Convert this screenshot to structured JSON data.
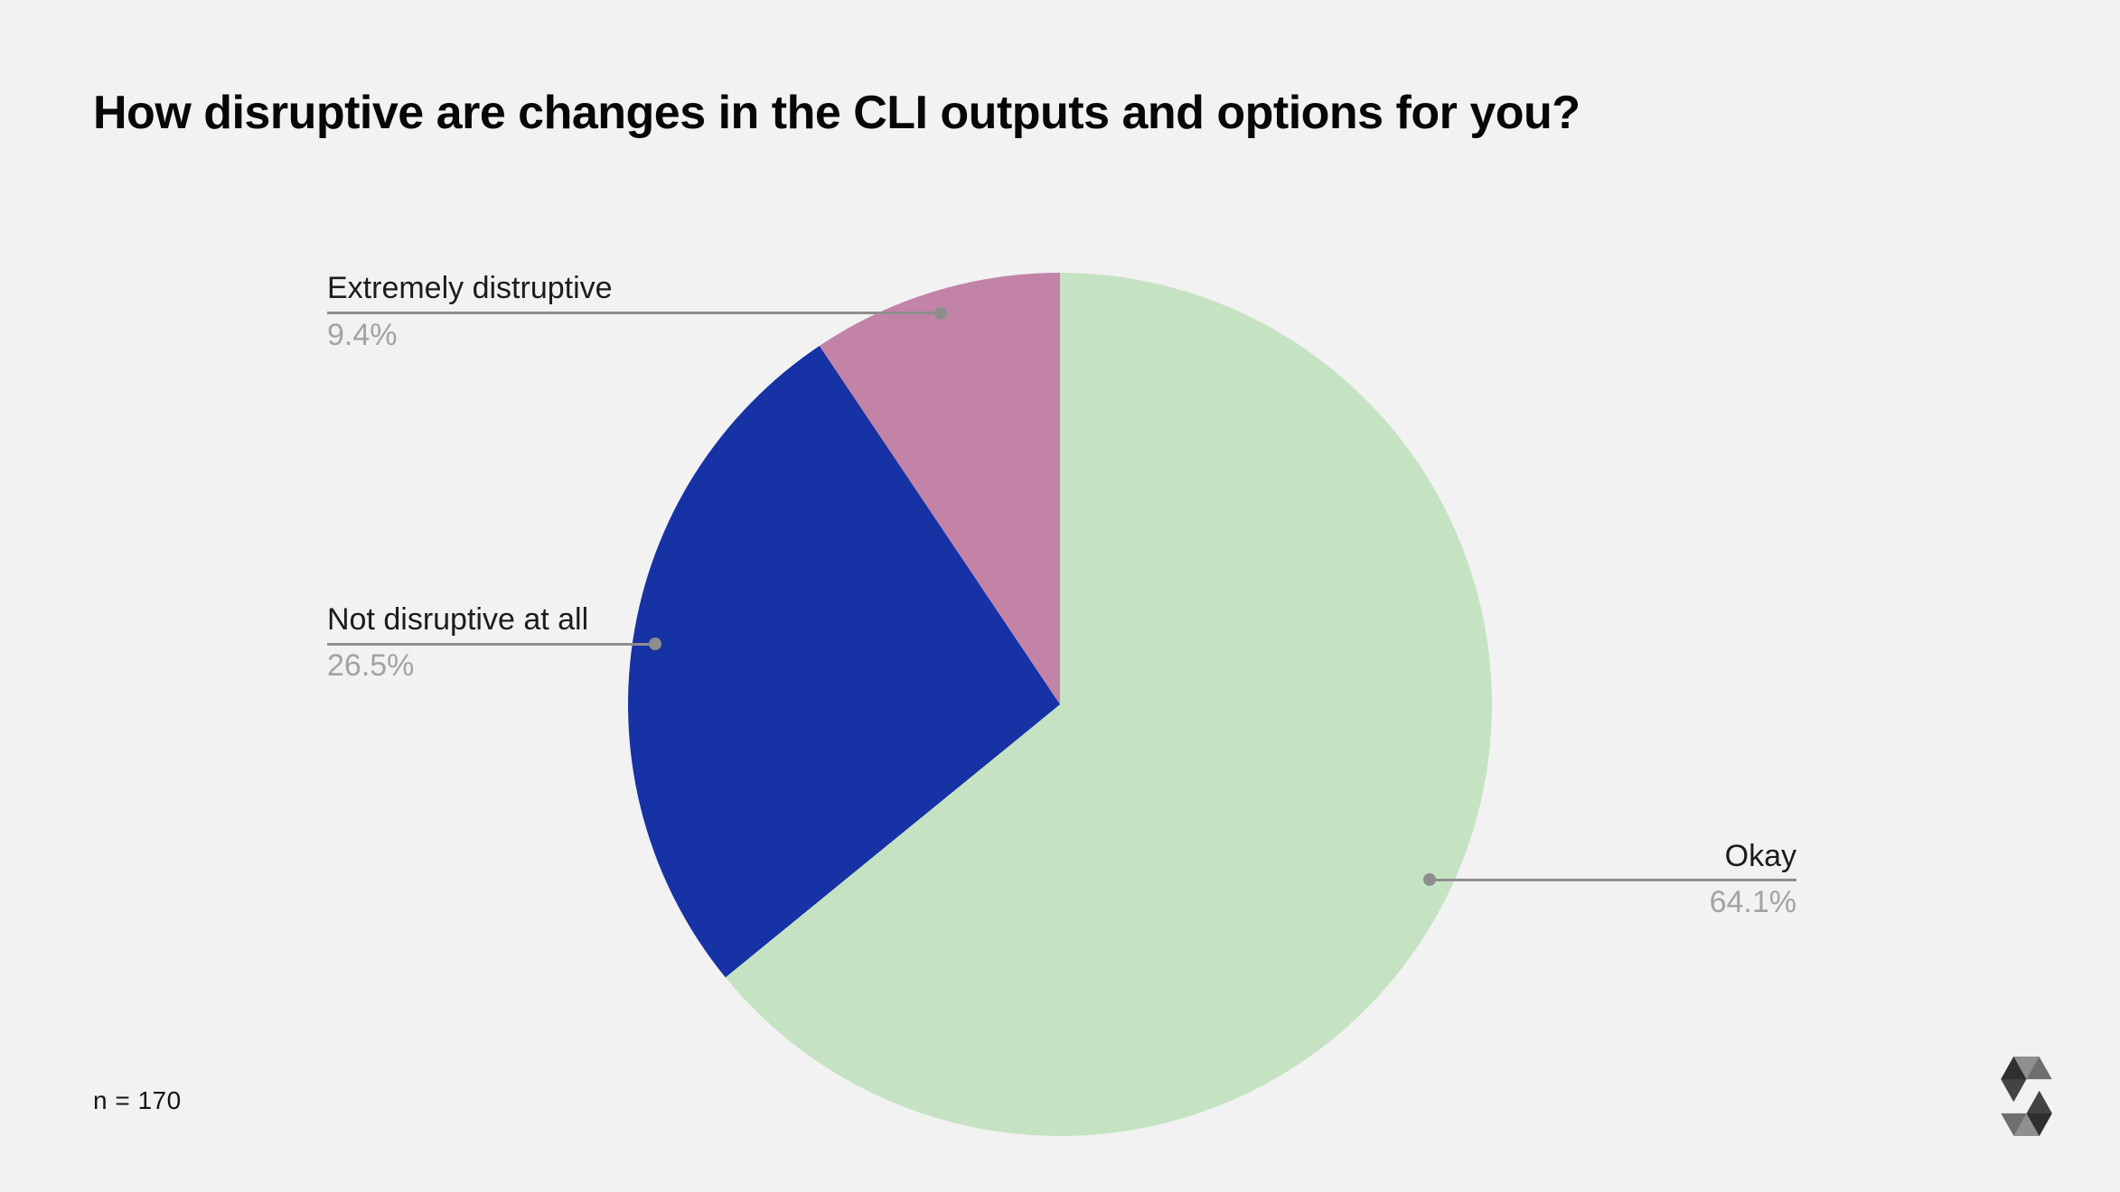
{
  "page": {
    "background_color": "#f2f2f2",
    "sample_size_label": "n = 170"
  },
  "chart_data": {
    "type": "pie",
    "title": "How disruptive are changes in the CLI outputs and options for you?",
    "n": 170,
    "start_angle_deg": 0,
    "direction": "clockwise",
    "legend_position": "external-callouts",
    "slices": [
      {
        "id": "okay",
        "label": "Okay",
        "value_pct": 64.1,
        "display_pct": "64.1%",
        "color": "#c5e3c2",
        "callout_side": "right"
      },
      {
        "id": "not-disruptive",
        "label": "Not disruptive at all",
        "value_pct": 26.5,
        "display_pct": "26.5%",
        "color": "#1632a5",
        "callout_side": "left"
      },
      {
        "id": "extremely-disruptive",
        "label": "Extremely distruptive",
        "value_pct": 9.4,
        "display_pct": "9.4%",
        "color": "#c383a7",
        "callout_side": "left"
      }
    ]
  },
  "style": {
    "leader_line_color": "#8e8e8e",
    "label_text_color": "#1c1c1c",
    "pct_text_color": "#a3a3a3"
  },
  "branding": {
    "logo_icon": "solidity-logo",
    "logo_color": "#161616"
  }
}
